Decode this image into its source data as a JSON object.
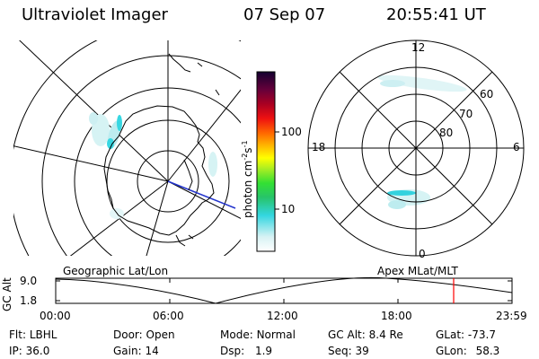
{
  "header": {
    "instrument": "Ultraviolet Imager",
    "date": "07 Sep 07",
    "time": "20:55:41 UT"
  },
  "colorbar": {
    "label": "photon cm",
    "label_sup1": "-2",
    "label_s": "s",
    "label_sup2": "-1",
    "ticks": [
      "100",
      "10"
    ]
  },
  "right_map": {
    "mlt_labels": {
      "top": "12",
      "left": "18",
      "right": "6",
      "bottom": "0"
    },
    "mlat_labels": [
      "60",
      "70",
      "80"
    ]
  },
  "panel_labels": {
    "left": "Geographic Lat/Lon",
    "right": "Apex MLat/MLT"
  },
  "altitude_plot": {
    "ylabel": "GC Alt",
    "yticks": [
      "9.0",
      "1.8"
    ],
    "xticks": [
      "00:00",
      "06:00",
      "12:00",
      "18:00",
      "23:59"
    ],
    "marker_color": "#ff0000"
  },
  "info": {
    "row1": [
      {
        "label": "Flt:",
        "value": "LBHL"
      },
      {
        "label": "Door:",
        "value": "Open"
      },
      {
        "label": "Mode:",
        "value": "Normal"
      },
      {
        "label": "GC Alt:",
        "value": "8.4 Re"
      },
      {
        "label": "GLat:",
        "value": "-73.7"
      }
    ],
    "row2": [
      {
        "label": "IP:",
        "value": "36.0"
      },
      {
        "label": "Gain:",
        "value": "14"
      },
      {
        "label": "Dsp:",
        "value": "1.9"
      },
      {
        "label": "Seq:",
        "value": "39"
      },
      {
        "label": "GLon:",
        "value": "58.3"
      }
    ]
  }
}
